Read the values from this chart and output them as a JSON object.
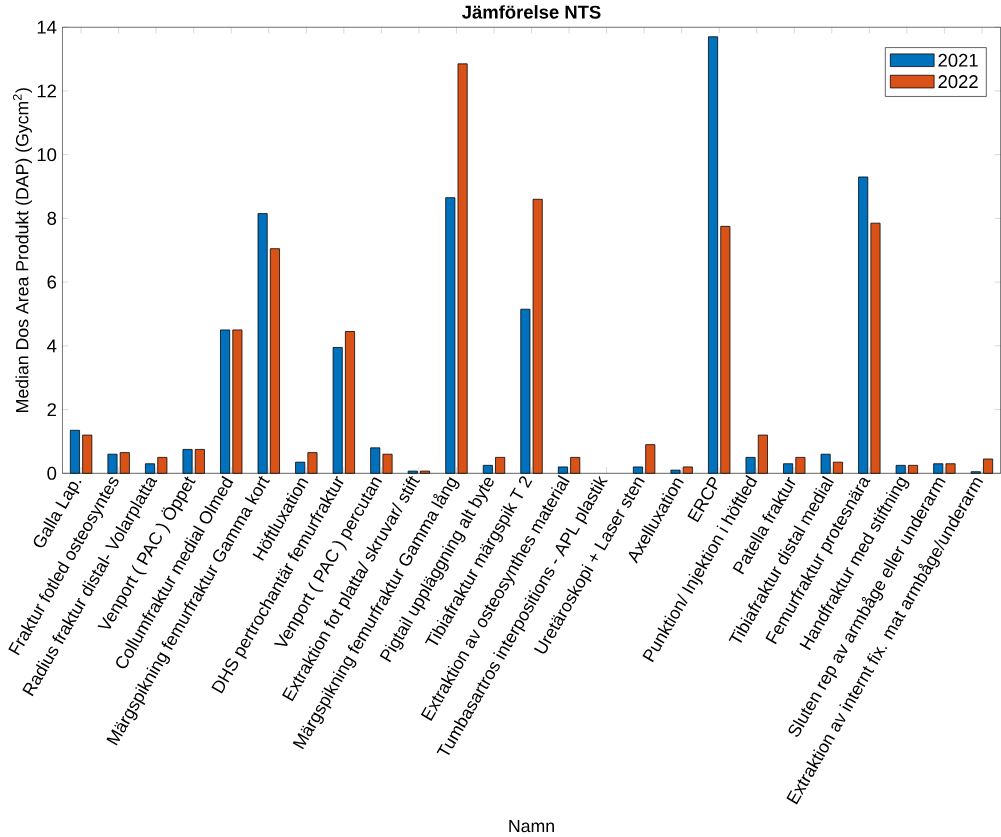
{
  "chart_data": {
    "type": "bar",
    "title": "Jämförelse NTS",
    "xlabel": "Namn",
    "ylabel": "Median Dos Area Produkt (DAP) (Gycm$^{2}$)",
    "categories": [
      "Galla Lap.",
      "Fraktur fotled osteosyntes",
      "Radius fraktur distal- Volarplatta",
      "Venport ( PAC ) Öppet",
      "Collumfraktur medial Olmed",
      "Märgspikning femurfraktur Gamma kort",
      "Höftluxation",
      "DHS pertrochantär femurfraktur",
      "Venport ( PAC ) percutan",
      "Extraktion fot platta/ skruvar/ stift",
      "Märgspikning femurfraktur Gamma lång",
      "Pigtail uppläggning alt byte",
      "Tibiafraktur märgspik T 2",
      "Extraktion av osteosynthes material",
      "Tumbasartros interpositions - APL plastik",
      "Uretäroskopi + Laser sten",
      "Axelluxation",
      "ERCP",
      "Punktion/ Injektion i höftled",
      "Patella fraktur",
      "Tibiafraktur distal medial",
      "Femurfraktur protesnära",
      "Handfraktur med stiftning",
      "Sluten rep av armbåge eller underarm",
      "Extraktion av internt fix. mat armbåge/underarm"
    ],
    "series": [
      {
        "name": "2021",
        "color": "#0072bd",
        "values": [
          1.35,
          0.6,
          0.3,
          0.75,
          4.5,
          8.15,
          0.35,
          3.95,
          0.8,
          0.07,
          8.65,
          0.25,
          5.15,
          0.2,
          null,
          0.2,
          0.1,
          13.7,
          0.5,
          0.3,
          0.6,
          9.3,
          0.25,
          0.3,
          0.05
        ]
      },
      {
        "name": "2022",
        "color": "#d95319",
        "values": [
          1.2,
          0.65,
          0.5,
          0.75,
          4.5,
          7.05,
          0.65,
          4.45,
          0.6,
          0.07,
          12.85,
          0.5,
          8.6,
          0.5,
          null,
          0.9,
          0.2,
          7.75,
          1.2,
          0.5,
          0.35,
          7.85,
          0.25,
          0.3,
          0.45
        ]
      }
    ],
    "ylim": [
      0,
      14
    ],
    "yticks": [
      0,
      2,
      4,
      6,
      8,
      10,
      12,
      14
    ],
    "legend": "top right",
    "grid": false
  }
}
